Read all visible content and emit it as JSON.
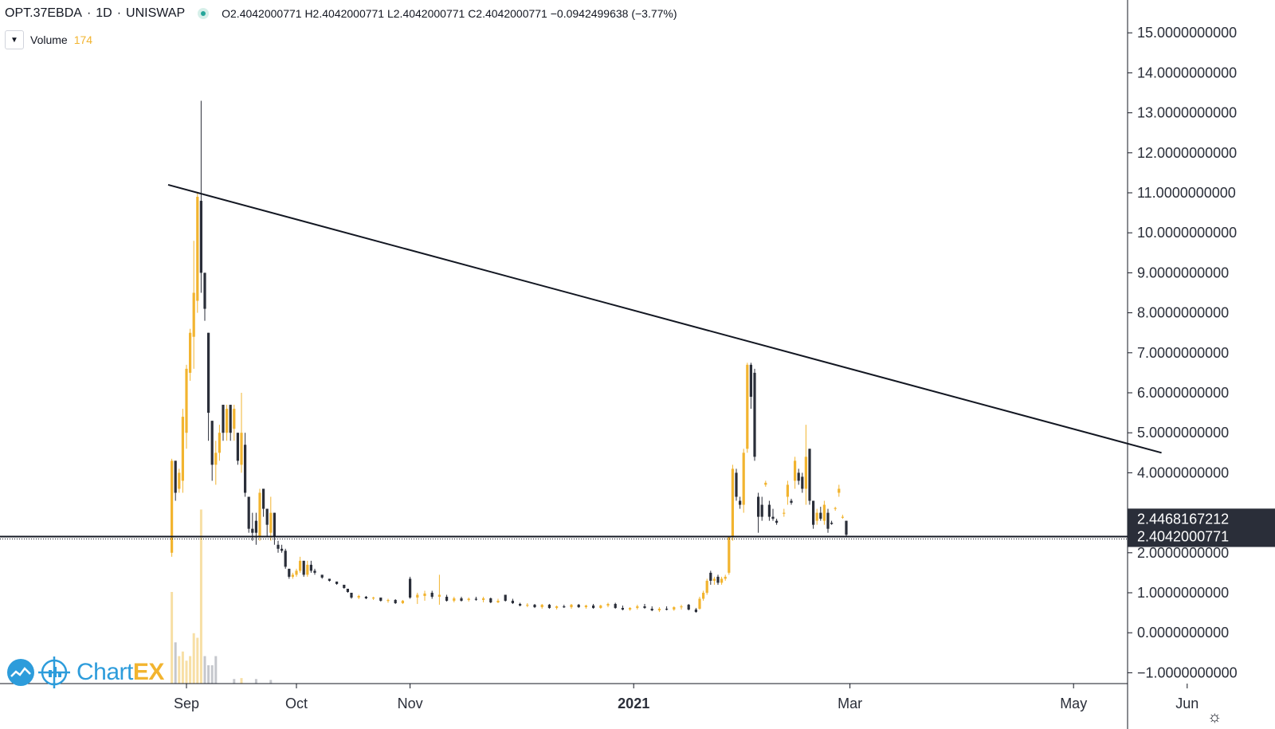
{
  "header": {
    "symbol": "OPT.37EBDA",
    "separator1": "·",
    "interval": "1D",
    "separator2": "·",
    "exchange": "UNISWAP",
    "ohlc": "O2.4042000771  H2.4042000771  L2.4042000771  C2.4042000771  −0.0942499638 (−3.77%)"
  },
  "volume": {
    "label": "Volume",
    "value": "174"
  },
  "logo": {
    "prefix": "Chart",
    "suffix": "EX"
  },
  "colors": {
    "up": "#f2b42f",
    "down": "#2a2e39",
    "volume_up": "#f7dfa5",
    "volume_down": "#c5c7cc",
    "axis_text": "#2a2e39"
  },
  "chart_data": {
    "type": "candlestick",
    "title": "",
    "y_axis_position": "right",
    "ylim": [
      -1.2,
      15.6
    ],
    "y_ticks": [
      "15.0000000000",
      "14.0000000000",
      "13.0000000000",
      "12.0000000000",
      "11.0000000000",
      "10.0000000000",
      "9.0000000000",
      "8.0000000000",
      "7.0000000000",
      "6.0000000000",
      "5.0000000000",
      "4.0000000000",
      "2.0000000000",
      "1.0000000000",
      "0.0000000000",
      "−1.0000000000"
    ],
    "x_ticks": [
      "Sep",
      "Oct",
      "Nov",
      "2021",
      "Mar",
      "May",
      "Jun"
    ],
    "price_labels": [
      {
        "text": "2.4468167212",
        "value": 2.4468167212
      },
      {
        "text": "2.4042000771",
        "value": 2.4042000771
      }
    ],
    "trend_line": {
      "from": {
        "date": "2020-08-27",
        "value": 11.2
      },
      "to": {
        "date": "2021-05-25",
        "value": 4.5
      }
    },
    "horizontal_line": 2.4042000771,
    "grid": false,
    "candles": [
      {
        "d": "2020-08-28",
        "o": 2.0,
        "h": 4.35,
        "l": 1.9,
        "c": 4.3
      },
      {
        "d": "2020-08-29",
        "o": 4.3,
        "h": 4.3,
        "l": 3.3,
        "c": 3.5
      },
      {
        "d": "2020-08-30",
        "o": 3.6,
        "h": 4.1,
        "l": 3.5,
        "c": 4.0
      },
      {
        "d": "2020-08-31",
        "o": 3.8,
        "h": 5.6,
        "l": 3.5,
        "c": 5.4
      },
      {
        "d": "2020-09-01",
        "o": 5.0,
        "h": 6.7,
        "l": 4.6,
        "c": 6.6
      },
      {
        "d": "2020-09-02",
        "o": 6.5,
        "h": 7.6,
        "l": 6.3,
        "c": 7.5
      },
      {
        "d": "2020-09-03",
        "o": 7.4,
        "h": 9.8,
        "l": 6.6,
        "c": 8.5
      },
      {
        "d": "2020-09-04",
        "o": 8.3,
        "h": 11.0,
        "l": 8.0,
        "c": 10.9
      },
      {
        "d": "2020-09-05",
        "o": 10.8,
        "h": 13.3,
        "l": 8.5,
        "c": 9.0
      },
      {
        "d": "2020-09-06",
        "o": 9.0,
        "h": 9.0,
        "l": 7.8,
        "c": 8.1
      },
      {
        "d": "2020-09-07",
        "o": 7.5,
        "h": 7.5,
        "l": 4.8,
        "c": 5.5
      },
      {
        "d": "2020-09-08",
        "o": 5.3,
        "h": 5.3,
        "l": 3.8,
        "c": 4.2
      },
      {
        "d": "2020-09-09",
        "o": 4.2,
        "h": 4.8,
        "l": 3.7,
        "c": 4.5
      },
      {
        "d": "2020-09-10",
        "o": 4.5,
        "h": 5.2,
        "l": 4.3,
        "c": 5.0
      },
      {
        "d": "2020-09-11",
        "o": 5.7,
        "h": 5.7,
        "l": 4.8,
        "c": 5.0
      },
      {
        "d": "2020-09-12",
        "o": 5.0,
        "h": 5.7,
        "l": 4.8,
        "c": 5.6
      },
      {
        "d": "2020-09-13",
        "o": 5.7,
        "h": 5.7,
        "l": 4.8,
        "c": 5.0
      },
      {
        "d": "2020-09-14",
        "o": 5.1,
        "h": 5.7,
        "l": 4.8,
        "c": 5.6
      },
      {
        "d": "2020-09-15",
        "o": 5.0,
        "h": 5.0,
        "l": 4.2,
        "c": 4.3
      },
      {
        "d": "2020-09-16",
        "o": 4.2,
        "h": 6.0,
        "l": 4.0,
        "c": 5.0
      },
      {
        "d": "2020-09-17",
        "o": 4.7,
        "h": 5.0,
        "l": 3.4,
        "c": 3.5
      },
      {
        "d": "2020-09-18",
        "o": 3.4,
        "h": 3.4,
        "l": 2.5,
        "c": 2.6
      },
      {
        "d": "2020-09-19",
        "o": 2.6,
        "h": 3.0,
        "l": 2.3,
        "c": 2.5
      },
      {
        "d": "2020-09-20",
        "o": 2.8,
        "h": 3.0,
        "l": 2.2,
        "c": 2.5
      },
      {
        "d": "2020-09-21",
        "o": 2.4,
        "h": 3.6,
        "l": 2.3,
        "c": 3.5
      },
      {
        "d": "2020-09-22",
        "o": 3.6,
        "h": 3.6,
        "l": 2.9,
        "c": 3.1
      },
      {
        "d": "2020-09-23",
        "o": 3.1,
        "h": 3.1,
        "l": 2.4,
        "c": 2.7
      },
      {
        "d": "2020-09-24",
        "o": 2.5,
        "h": 3.4,
        "l": 2.3,
        "c": 3.0
      },
      {
        "d": "2020-09-25",
        "o": 3.0,
        "h": 3.0,
        "l": 2.2,
        "c": 2.4
      },
      {
        "d": "2020-09-26",
        "o": 2.2,
        "h": 2.3,
        "l": 2.0,
        "c": 2.1
      },
      {
        "d": "2020-09-27",
        "o": 2.1,
        "h": 2.2,
        "l": 2.0,
        "c": 2.05
      },
      {
        "d": "2020-09-28",
        "o": 2.05,
        "h": 2.1,
        "l": 1.6,
        "c": 1.65
      },
      {
        "d": "2020-09-29",
        "o": 1.6,
        "h": 1.6,
        "l": 1.35,
        "c": 1.4
      },
      {
        "d": "2020-09-30",
        "o": 1.4,
        "h": 1.5,
        "l": 1.35,
        "c": 1.45
      },
      {
        "d": "2020-10-01",
        "o": 1.45,
        "h": 1.6,
        "l": 1.4,
        "c": 1.55
      },
      {
        "d": "2020-10-02",
        "o": 1.55,
        "h": 1.9,
        "l": 1.5,
        "c": 1.8
      },
      {
        "d": "2020-10-03",
        "o": 1.8,
        "h": 1.8,
        "l": 1.4,
        "c": 1.45
      },
      {
        "d": "2020-10-04",
        "o": 1.45,
        "h": 1.8,
        "l": 1.4,
        "c": 1.7
      },
      {
        "d": "2020-10-05",
        "o": 1.7,
        "h": 1.8,
        "l": 1.5,
        "c": 1.55
      },
      {
        "d": "2020-10-06",
        "o": 1.55,
        "h": 1.6,
        "l": 1.45,
        "c": 1.5
      },
      {
        "d": "2020-10-08",
        "o": 1.45,
        "h": 1.45,
        "l": 1.35,
        "c": 1.38
      },
      {
        "d": "2020-10-10",
        "o": 1.35,
        "h": 1.35,
        "l": 1.28,
        "c": 1.3
      },
      {
        "d": "2020-10-12",
        "o": 1.28,
        "h": 1.28,
        "l": 1.2,
        "c": 1.22
      },
      {
        "d": "2020-10-14",
        "o": 1.2,
        "h": 1.2,
        "l": 1.1,
        "c": 1.12
      },
      {
        "d": "2020-10-15",
        "o": 1.1,
        "h": 1.1,
        "l": 1.0,
        "c": 1.02
      },
      {
        "d": "2020-10-16",
        "o": 1.0,
        "h": 1.0,
        "l": 0.85,
        "c": 0.88
      },
      {
        "d": "2020-10-18",
        "o": 0.88,
        "h": 0.95,
        "l": 0.84,
        "c": 0.92
      },
      {
        "d": "2020-10-20",
        "o": 0.9,
        "h": 0.92,
        "l": 0.84,
        "c": 0.86
      },
      {
        "d": "2020-10-22",
        "o": 0.86,
        "h": 0.9,
        "l": 0.82,
        "c": 0.88
      },
      {
        "d": "2020-10-24",
        "o": 0.88,
        "h": 0.88,
        "l": 0.78,
        "c": 0.8
      },
      {
        "d": "2020-10-26",
        "o": 0.8,
        "h": 0.85,
        "l": 0.75,
        "c": 0.82
      },
      {
        "d": "2020-10-28",
        "o": 0.82,
        "h": 0.84,
        "l": 0.72,
        "c": 0.74
      },
      {
        "d": "2020-10-30",
        "o": 0.74,
        "h": 0.82,
        "l": 0.72,
        "c": 0.8
      },
      {
        "d": "2020-11-01",
        "o": 1.35,
        "h": 1.4,
        "l": 0.85,
        "c": 0.88
      },
      {
        "d": "2020-11-03",
        "o": 0.88,
        "h": 1.0,
        "l": 0.72,
        "c": 0.95
      },
      {
        "d": "2020-11-05",
        "o": 0.92,
        "h": 1.05,
        "l": 0.8,
        "c": 0.98
      },
      {
        "d": "2020-11-07",
        "o": 1.0,
        "h": 1.05,
        "l": 0.85,
        "c": 0.9
      },
      {
        "d": "2020-11-09",
        "o": 0.9,
        "h": 1.45,
        "l": 0.7,
        "c": 0.95
      },
      {
        "d": "2020-11-11",
        "o": 0.9,
        "h": 0.95,
        "l": 0.78,
        "c": 0.8
      },
      {
        "d": "2020-11-13",
        "o": 0.8,
        "h": 0.9,
        "l": 0.76,
        "c": 0.86
      },
      {
        "d": "2020-11-15",
        "o": 0.86,
        "h": 0.9,
        "l": 0.78,
        "c": 0.8
      },
      {
        "d": "2020-11-17",
        "o": 0.82,
        "h": 0.88,
        "l": 0.78,
        "c": 0.85
      },
      {
        "d": "2020-11-19",
        "o": 0.85,
        "h": 0.9,
        "l": 0.8,
        "c": 0.84
      },
      {
        "d": "2020-11-21",
        "o": 0.82,
        "h": 0.9,
        "l": 0.76,
        "c": 0.86
      },
      {
        "d": "2020-11-23",
        "o": 0.86,
        "h": 0.88,
        "l": 0.74,
        "c": 0.76
      },
      {
        "d": "2020-11-25",
        "o": 0.76,
        "h": 0.85,
        "l": 0.74,
        "c": 0.8
      },
      {
        "d": "2020-11-27",
        "o": 0.95,
        "h": 0.95,
        "l": 0.78,
        "c": 0.8
      },
      {
        "d": "2020-11-29",
        "o": 0.8,
        "h": 0.85,
        "l": 0.72,
        "c": 0.74
      },
      {
        "d": "2020-12-01",
        "o": 0.72,
        "h": 0.75,
        "l": 0.66,
        "c": 0.68
      },
      {
        "d": "2020-12-03",
        "o": 0.68,
        "h": 0.74,
        "l": 0.64,
        "c": 0.7
      },
      {
        "d": "2020-12-05",
        "o": 0.7,
        "h": 0.72,
        "l": 0.62,
        "c": 0.64
      },
      {
        "d": "2020-12-07",
        "o": 0.64,
        "h": 0.72,
        "l": 0.6,
        "c": 0.7
      },
      {
        "d": "2020-12-09",
        "o": 0.7,
        "h": 0.72,
        "l": 0.6,
        "c": 0.62
      },
      {
        "d": "2020-12-11",
        "o": 0.62,
        "h": 0.68,
        "l": 0.58,
        "c": 0.66
      },
      {
        "d": "2020-12-13",
        "o": 0.66,
        "h": 0.7,
        "l": 0.62,
        "c": 0.64
      },
      {
        "d": "2020-12-15",
        "o": 0.64,
        "h": 0.72,
        "l": 0.6,
        "c": 0.7
      },
      {
        "d": "2020-12-17",
        "o": 0.7,
        "h": 0.72,
        "l": 0.62,
        "c": 0.64
      },
      {
        "d": "2020-12-19",
        "o": 0.64,
        "h": 0.7,
        "l": 0.6,
        "c": 0.68
      },
      {
        "d": "2020-12-21",
        "o": 0.68,
        "h": 0.72,
        "l": 0.6,
        "c": 0.62
      },
      {
        "d": "2020-12-23",
        "o": 0.62,
        "h": 0.7,
        "l": 0.6,
        "c": 0.68
      },
      {
        "d": "2020-12-25",
        "o": 0.68,
        "h": 0.75,
        "l": 0.64,
        "c": 0.72
      },
      {
        "d": "2020-12-27",
        "o": 0.72,
        "h": 0.75,
        "l": 0.6,
        "c": 0.62
      },
      {
        "d": "2020-12-29",
        "o": 0.62,
        "h": 0.68,
        "l": 0.56,
        "c": 0.58
      },
      {
        "d": "2020-12-31",
        "o": 0.58,
        "h": 0.64,
        "l": 0.55,
        "c": 0.62
      },
      {
        "d": "2021-01-02",
        "o": 0.62,
        "h": 0.7,
        "l": 0.58,
        "c": 0.66
      },
      {
        "d": "2021-01-04",
        "o": 0.66,
        "h": 0.72,
        "l": 0.6,
        "c": 0.62
      },
      {
        "d": "2021-01-06",
        "o": 0.6,
        "h": 0.66,
        "l": 0.54,
        "c": 0.56
      },
      {
        "d": "2021-01-08",
        "o": 0.56,
        "h": 0.64,
        "l": 0.52,
        "c": 0.6
      },
      {
        "d": "2021-01-10",
        "o": 0.6,
        "h": 0.66,
        "l": 0.56,
        "c": 0.58
      },
      {
        "d": "2021-01-12",
        "o": 0.58,
        "h": 0.66,
        "l": 0.55,
        "c": 0.64
      },
      {
        "d": "2021-01-14",
        "o": 0.64,
        "h": 0.7,
        "l": 0.58,
        "c": 0.66
      },
      {
        "d": "2021-01-16",
        "o": 0.7,
        "h": 0.72,
        "l": 0.56,
        "c": 0.58
      },
      {
        "d": "2021-01-18",
        "o": 0.58,
        "h": 0.62,
        "l": 0.5,
        "c": 0.52
      },
      {
        "d": "2021-01-19",
        "o": 0.6,
        "h": 0.9,
        "l": 0.58,
        "c": 0.85
      },
      {
        "d": "2021-01-20",
        "o": 0.85,
        "h": 1.05,
        "l": 0.8,
        "c": 1.0
      },
      {
        "d": "2021-01-21",
        "o": 1.0,
        "h": 1.35,
        "l": 0.95,
        "c": 1.3
      },
      {
        "d": "2021-01-22",
        "o": 1.5,
        "h": 1.55,
        "l": 1.2,
        "c": 1.3
      },
      {
        "d": "2021-01-23",
        "o": 1.3,
        "h": 1.4,
        "l": 1.2,
        "c": 1.35
      },
      {
        "d": "2021-01-24",
        "o": 1.4,
        "h": 1.45,
        "l": 1.2,
        "c": 1.25
      },
      {
        "d": "2021-01-25",
        "o": 1.25,
        "h": 1.4,
        "l": 1.2,
        "c": 1.35
      },
      {
        "d": "2021-01-26",
        "o": 1.35,
        "h": 1.45,
        "l": 1.3,
        "c": 1.4
      },
      {
        "d": "2021-01-27",
        "o": 1.5,
        "h": 2.4,
        "l": 1.45,
        "c": 2.4
      },
      {
        "d": "2021-01-28",
        "o": 2.4,
        "h": 4.2,
        "l": 2.3,
        "c": 4.1
      },
      {
        "d": "2021-01-29",
        "o": 4.0,
        "h": 4.1,
        "l": 3.3,
        "c": 3.4
      },
      {
        "d": "2021-01-30",
        "o": 3.3,
        "h": 3.4,
        "l": 3.1,
        "c": 3.2
      },
      {
        "d": "2021-01-31",
        "o": 3.2,
        "h": 4.6,
        "l": 3.0,
        "c": 4.5
      },
      {
        "d": "2021-02-01",
        "o": 4.6,
        "h": 6.75,
        "l": 4.5,
        "c": 6.7
      },
      {
        "d": "2021-02-02",
        "o": 6.7,
        "h": 6.75,
        "l": 5.6,
        "c": 5.9
      },
      {
        "d": "2021-02-03",
        "o": 6.5,
        "h": 6.6,
        "l": 4.3,
        "c": 4.4
      },
      {
        "d": "2021-02-04",
        "o": 3.4,
        "h": 3.5,
        "l": 2.5,
        "c": 2.9
      },
      {
        "d": "2021-02-05",
        "o": 3.2,
        "h": 3.4,
        "l": 2.8,
        "c": 2.9
      },
      {
        "d": "2021-02-06",
        "o": 3.7,
        "h": 3.8,
        "l": 3.65,
        "c": 3.75
      },
      {
        "d": "2021-02-07",
        "o": 3.2,
        "h": 3.3,
        "l": 2.8,
        "c": 2.9
      },
      {
        "d": "2021-02-08",
        "o": 2.9,
        "h": 3.1,
        "l": 2.8,
        "c": 2.85
      },
      {
        "d": "2021-02-09",
        "o": 2.8,
        "h": 2.85,
        "l": 2.7,
        "c": 2.75
      },
      {
        "d": "2021-02-11",
        "o": 3.0,
        "h": 3.1,
        "l": 2.9,
        "c": 3.0
      },
      {
        "d": "2021-02-12",
        "o": 3.4,
        "h": 3.8,
        "l": 3.2,
        "c": 3.7
      },
      {
        "d": "2021-02-13",
        "o": 3.3,
        "h": 3.35,
        "l": 3.2,
        "c": 3.25
      },
      {
        "d": "2021-02-14",
        "o": 3.8,
        "h": 4.4,
        "l": 3.6,
        "c": 4.3
      },
      {
        "d": "2021-02-15",
        "o": 4.0,
        "h": 4.1,
        "l": 3.7,
        "c": 3.8
      },
      {
        "d": "2021-02-16",
        "o": 3.9,
        "h": 4.0,
        "l": 3.5,
        "c": 3.6
      },
      {
        "d": "2021-02-17",
        "o": 3.6,
        "h": 5.2,
        "l": 3.2,
        "c": 4.4
      },
      {
        "d": "2021-02-18",
        "o": 4.6,
        "h": 4.6,
        "l": 3.2,
        "c": 3.3
      },
      {
        "d": "2021-02-19",
        "o": 3.3,
        "h": 3.3,
        "l": 2.6,
        "c": 2.7
      },
      {
        "d": "2021-02-20",
        "o": 2.8,
        "h": 3.1,
        "l": 2.7,
        "c": 3.0
      },
      {
        "d": "2021-02-21",
        "o": 3.0,
        "h": 3.15,
        "l": 2.8,
        "c": 2.85
      },
      {
        "d": "2021-02-22",
        "o": 2.8,
        "h": 3.3,
        "l": 2.7,
        "c": 3.2
      },
      {
        "d": "2021-02-23",
        "o": 3.0,
        "h": 3.1,
        "l": 2.5,
        "c": 2.6
      },
      {
        "d": "2021-02-24",
        "o": 2.75,
        "h": 2.8,
        "l": 2.7,
        "c": 2.72
      },
      {
        "d": "2021-02-25",
        "o": 3.1,
        "h": 3.15,
        "l": 3.05,
        "c": 3.12
      },
      {
        "d": "2021-02-26",
        "o": 3.5,
        "h": 3.7,
        "l": 3.4,
        "c": 3.6
      },
      {
        "d": "2021-02-27",
        "o": 2.9,
        "h": 2.95,
        "l": 2.85,
        "c": 2.9
      },
      {
        "d": "2021-02-28",
        "o": 2.8,
        "h": 2.8,
        "l": 2.4,
        "c": 2.45
      }
    ],
    "volume": [
      {
        "d": "2020-08-28",
        "v": 1.0,
        "up": true
      },
      {
        "d": "2020-08-29",
        "v": 0.45,
        "up": false
      },
      {
        "d": "2020-08-30",
        "v": 0.3,
        "up": true
      },
      {
        "d": "2020-08-31",
        "v": 0.35,
        "up": true
      },
      {
        "d": "2020-09-01",
        "v": 0.25,
        "up": true
      },
      {
        "d": "2020-09-02",
        "v": 0.3,
        "up": true
      },
      {
        "d": "2020-09-03",
        "v": 0.55,
        "up": true
      },
      {
        "d": "2020-09-04",
        "v": 0.5,
        "up": true
      },
      {
        "d": "2020-09-05",
        "v": 1.9,
        "up": true
      },
      {
        "d": "2020-09-06",
        "v": 0.3,
        "up": false
      },
      {
        "d": "2020-09-07",
        "v": 0.2,
        "up": false
      },
      {
        "d": "2020-09-08",
        "v": 0.2,
        "up": false
      },
      {
        "d": "2020-09-09",
        "v": 0.3,
        "up": false
      },
      {
        "d": "2020-09-14",
        "v": 0.05,
        "up": false
      },
      {
        "d": "2020-09-16",
        "v": 0.06,
        "up": true
      },
      {
        "d": "2020-09-20",
        "v": 0.05,
        "up": false
      },
      {
        "d": "2020-09-24",
        "v": 0.04,
        "up": false
      }
    ]
  }
}
